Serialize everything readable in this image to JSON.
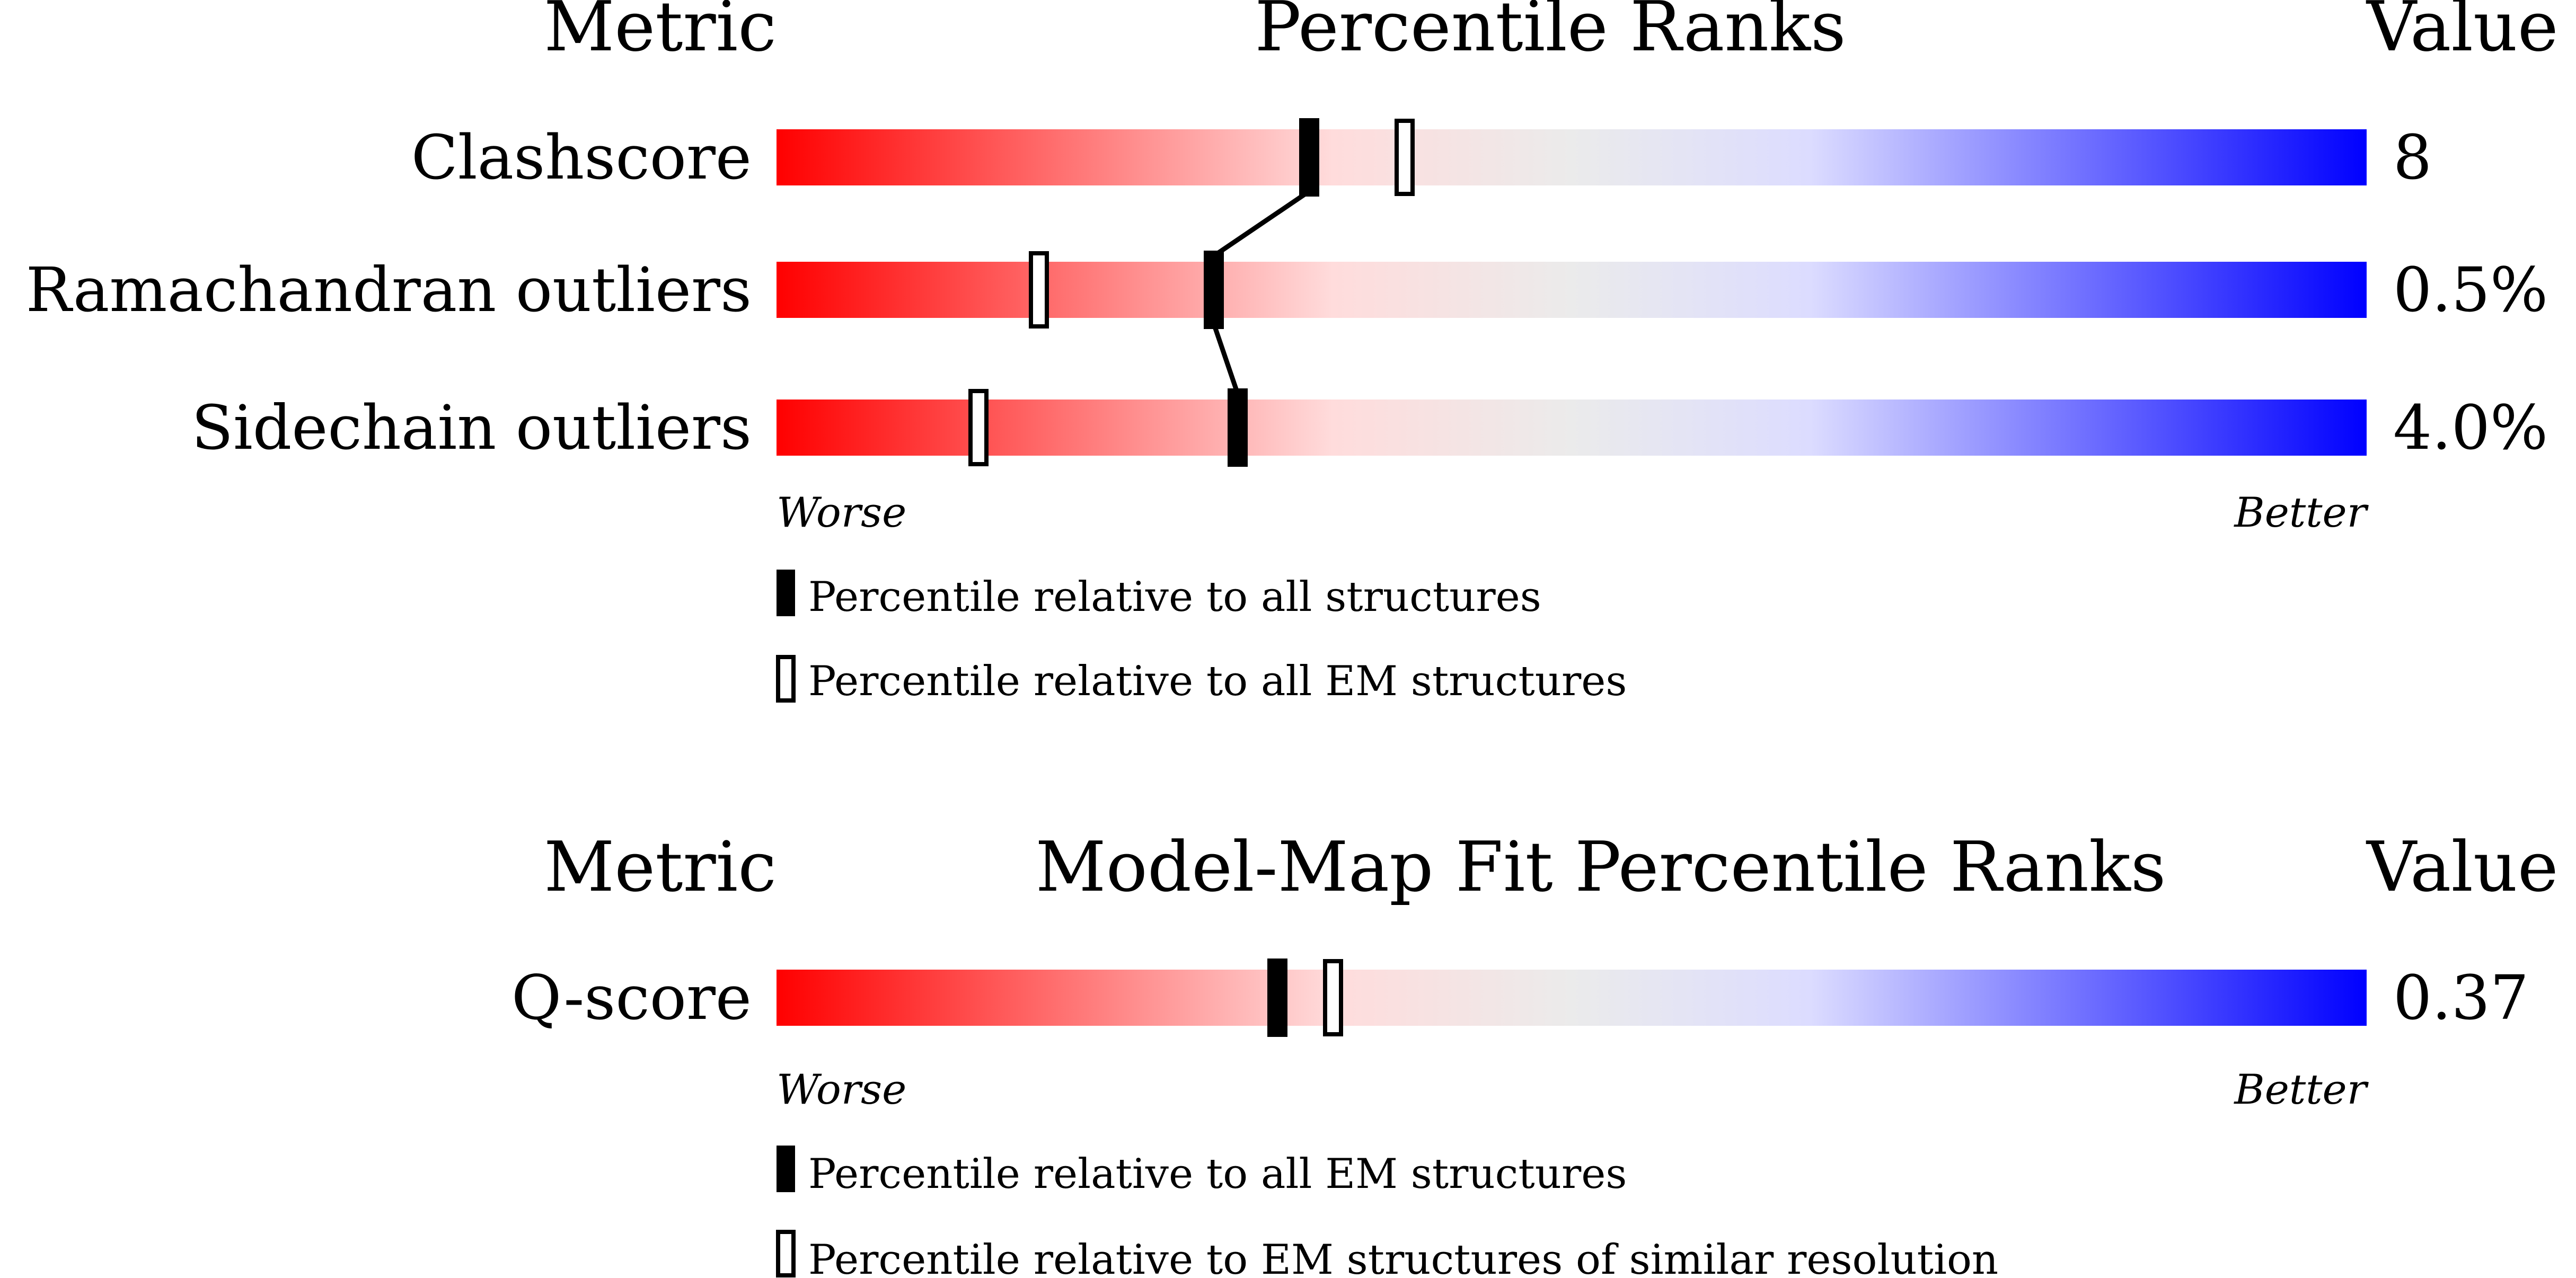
{
  "panel1": {
    "header_metric": "Metric",
    "header_title": "Percentile Ranks",
    "header_value": "Value",
    "rows": [
      {
        "metric": "Clashscore",
        "value": "8",
        "all_percentile": 33.5,
        "em_percentile": 39.5
      },
      {
        "metric": "Ramachandran outliers",
        "value": "0.5%",
        "all_percentile": 27.5,
        "em_percentile": 16.5
      },
      {
        "metric": "Sidechain outliers",
        "value": "4.0%",
        "all_percentile": 29.0,
        "em_percentile": 12.7
      }
    ],
    "worse_label": "Worse",
    "better_label": "Better",
    "legend": [
      {
        "marker": "filled",
        "text": "Percentile relative to all structures"
      },
      {
        "marker": "open",
        "text": "Percentile relative to all EM structures"
      }
    ]
  },
  "panel2": {
    "header_metric": "Metric",
    "header_title": "Model-Map Fit Percentile Ranks",
    "header_value": "Value",
    "rows": [
      {
        "metric": "Q-score",
        "value": "0.37",
        "all_percentile": 31.5,
        "em_percentile": 35.0
      }
    ],
    "worse_label": "Worse",
    "better_label": "Better",
    "legend": [
      {
        "marker": "filled",
        "text": "Percentile relative to all EM structures"
      },
      {
        "marker": "open",
        "text": "Percentile relative to EM structures of similar resolution"
      }
    ]
  },
  "colors": {
    "worse": "#ff0000",
    "mid_pink": "#ffdcdc",
    "mid_grey": "#ebebeb",
    "mid_lavender": "#dcdcff",
    "better": "#0000ff",
    "marker": "#000000"
  },
  "chart_data": [
    {
      "type": "bar",
      "title": "Percentile Ranks",
      "categories": [
        "Clashscore",
        "Ramachandran outliers",
        "Sidechain outliers"
      ],
      "series": [
        {
          "name": "Percentile relative to all structures",
          "values": [
            33.5,
            27.5,
            29.0
          ]
        },
        {
          "name": "Percentile relative to all EM structures",
          "values": [
            39.5,
            16.5,
            12.7
          ]
        }
      ],
      "values_text": [
        "8",
        "0.5%",
        "4.0%"
      ],
      "ylim": [
        0,
        100
      ]
    },
    {
      "type": "bar",
      "title": "Model-Map Fit Percentile Ranks",
      "categories": [
        "Q-score"
      ],
      "series": [
        {
          "name": "Percentile relative to all EM structures",
          "values": [
            31.5
          ]
        },
        {
          "name": "Percentile relative to EM structures of similar resolution",
          "values": [
            35.0
          ]
        }
      ],
      "values_text": [
        "0.37"
      ],
      "ylim": [
        0,
        100
      ]
    }
  ]
}
